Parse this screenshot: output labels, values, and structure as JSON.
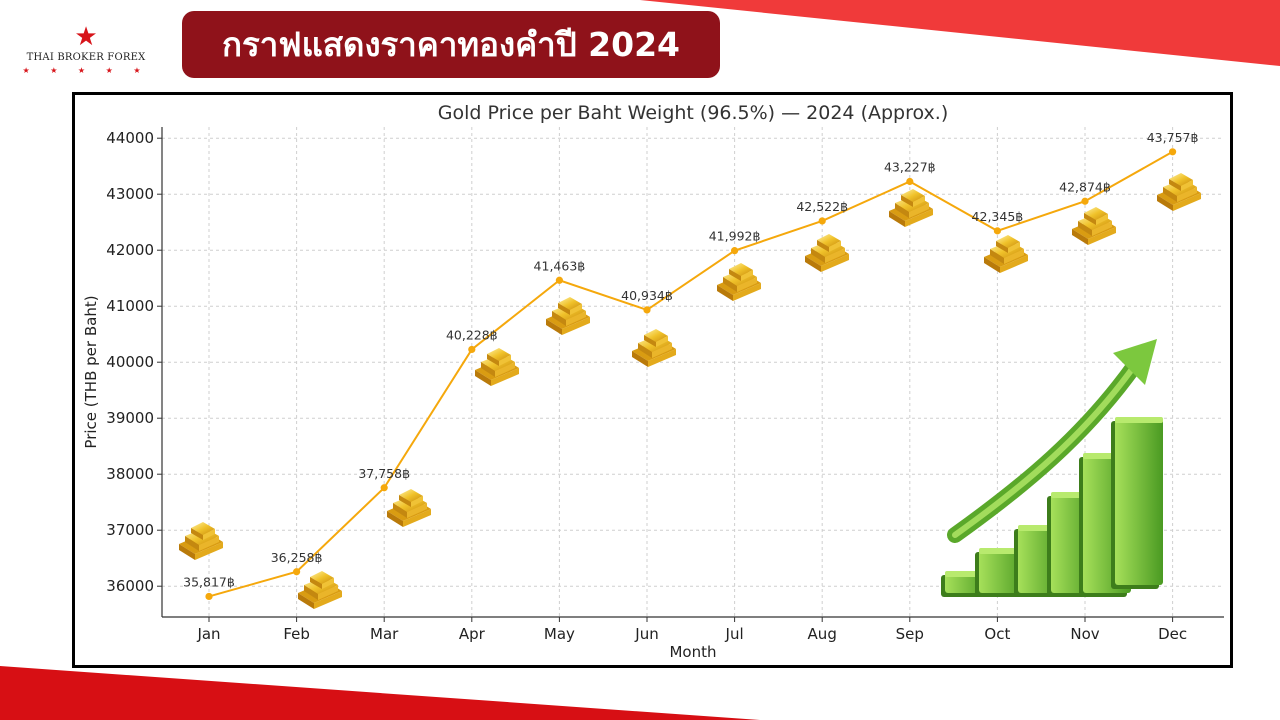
{
  "brand": {
    "name": "THAI BROKER FOREX",
    "star": "★",
    "stars": "★ ★ ★ ★ ★"
  },
  "header": {
    "title": "กราฟแสดงราคาทองคำปี 2024"
  },
  "colors": {
    "accent_red": "#e8262c",
    "badge": "#8f121a",
    "line": "#f5a80c",
    "gold": "#f2c230",
    "growth_green": "#6dbf3a"
  },
  "chart_data": {
    "type": "line",
    "title": "Gold Price per Baht Weight (96.5%) — 2024 (Approx.)",
    "xlabel": "Month",
    "ylabel": "Price (THB per Baht)",
    "categories": [
      "Jan",
      "Feb",
      "Mar",
      "Apr",
      "May",
      "Jun",
      "Jul",
      "Aug",
      "Sep",
      "Oct",
      "Nov",
      "Dec"
    ],
    "values": [
      35817,
      36258,
      37758,
      40228,
      41463,
      40934,
      41992,
      42522,
      43227,
      42345,
      42874,
      43757
    ],
    "data_labels": [
      "35,817฿",
      "36,258฿",
      "37,758฿",
      "40,228฿",
      "41,463฿",
      "40,934฿",
      "41,992฿",
      "42,522฿",
      "43,227฿",
      "42,345฿",
      "42,874฿",
      "43,757฿"
    ],
    "yticks": [
      36000,
      37000,
      38000,
      39000,
      40000,
      41000,
      42000,
      43000,
      44000
    ],
    "ylim": [
      35450,
      44200
    ],
    "grid": true,
    "decorations": [
      "gold-bar-icon",
      "growth-chart-icon"
    ]
  }
}
